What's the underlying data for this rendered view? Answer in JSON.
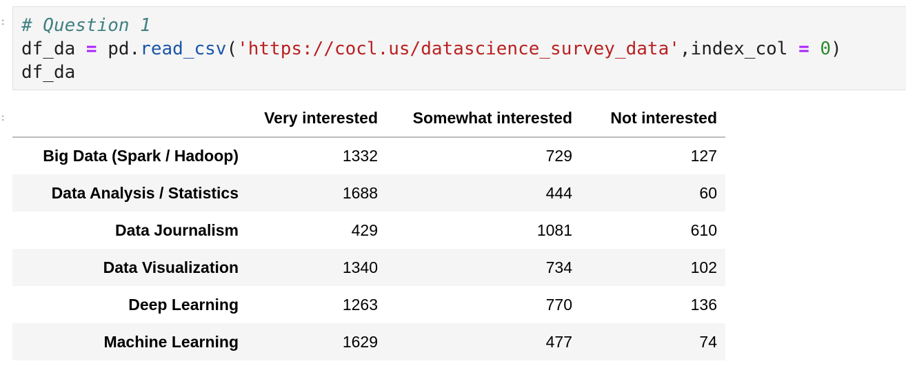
{
  "code_cell": {
    "lines": [
      {
        "tokens": [
          {
            "t": "# Question 1",
            "c": "comment"
          }
        ]
      },
      {
        "tokens": [
          {
            "t": "df_da ",
            "c": "plain"
          },
          {
            "t": "=",
            "c": "op"
          },
          {
            "t": " pd.",
            "c": "plain"
          },
          {
            "t": "read_csv",
            "c": "fn"
          },
          {
            "t": "(",
            "c": "plain"
          },
          {
            "t": "'https://cocl.us/datascience_survey_data'",
            "c": "str"
          },
          {
            "t": ",index_col ",
            "c": "plain"
          },
          {
            "t": "=",
            "c": "op"
          },
          {
            "t": " ",
            "c": "plain"
          },
          {
            "t": "0",
            "c": "num"
          },
          {
            "t": ")",
            "c": "plain"
          }
        ]
      },
      {
        "tokens": [
          {
            "t": "df_da",
            "c": "plain"
          }
        ]
      }
    ]
  },
  "table": {
    "columns": [
      "Very interested",
      "Somewhat interested",
      "Not interested"
    ],
    "rows": [
      {
        "index": "Big Data (Spark / Hadoop)",
        "values": [
          "1332",
          "729",
          "127"
        ]
      },
      {
        "index": "Data Analysis / Statistics",
        "values": [
          "1688",
          "444",
          "60"
        ]
      },
      {
        "index": "Data Journalism",
        "values": [
          "429",
          "1081",
          "610"
        ]
      },
      {
        "index": "Data Visualization",
        "values": [
          "1340",
          "734",
          "102"
        ]
      },
      {
        "index": "Deep Learning",
        "values": [
          "1263",
          "770",
          "136"
        ]
      },
      {
        "index": "Machine Learning",
        "values": [
          "1629",
          "477",
          "74"
        ]
      }
    ]
  }
}
